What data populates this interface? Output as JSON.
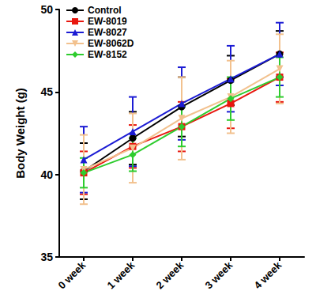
{
  "chart_data": {
    "type": "line",
    "categories": [
      "0 week",
      "1 week",
      "2 week",
      "3 week",
      "4 week"
    ],
    "y_label": "Body Weight (g)",
    "ylim": [
      35,
      50
    ],
    "yticks": [
      35,
      40,
      45,
      50
    ],
    "grid": false,
    "legend": "top-left",
    "series": [
      {
        "name": "Control",
        "color": "#000000",
        "marker": "circle",
        "values": [
          40.2,
          42.2,
          44.1,
          45.7,
          47.3
        ],
        "errors": [
          1.7,
          1.6,
          1.8,
          1.5,
          1.4
        ]
      },
      {
        "name": "EW-8019",
        "color": "#e8170f",
        "marker": "square",
        "values": [
          40.1,
          41.7,
          42.9,
          44.3,
          45.9
        ],
        "errors": [
          1.3,
          1.3,
          1.5,
          1.5,
          1.5
        ]
      },
      {
        "name": "EW-8027",
        "color": "#1c1cd4",
        "marker": "triangle",
        "values": [
          40.9,
          42.6,
          44.3,
          45.8,
          47.3
        ],
        "errors": [
          2.0,
          2.1,
          2.2,
          2.0,
          1.9
        ]
      },
      {
        "name": "EW-8062D",
        "color": "#f2c18e",
        "marker": "triangle-down",
        "values": [
          40.3,
          41.6,
          43.4,
          44.7,
          46.4
        ],
        "errors": [
          2.1,
          2.1,
          2.5,
          2.2,
          2.1
        ]
      },
      {
        "name": "EW-8152",
        "color": "#2ecc2e",
        "marker": "diamond",
        "values": [
          40.1,
          41.2,
          42.9,
          44.6,
          45.9
        ],
        "errors": [
          0.9,
          1.0,
          1.2,
          1.3,
          1.2
        ]
      }
    ]
  }
}
